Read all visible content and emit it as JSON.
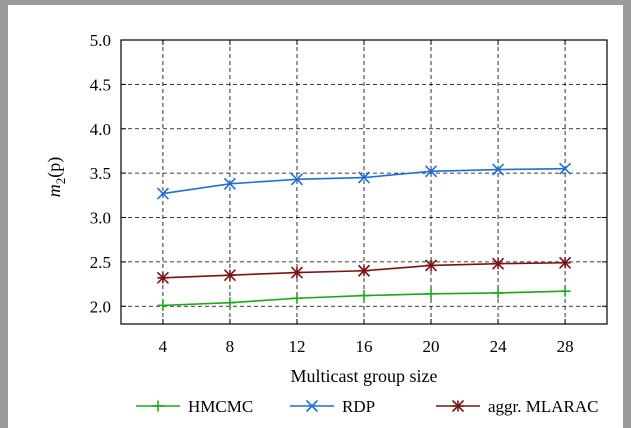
{
  "chart_data": {
    "type": "line",
    "x": [
      4,
      8,
      12,
      16,
      20,
      24,
      28
    ],
    "xlim": [
      1.5,
      30.5
    ],
    "ylim": [
      1.8,
      5.0
    ],
    "yticks": [
      2.0,
      2.5,
      3.0,
      3.5,
      4.0,
      4.5,
      5.0
    ],
    "ytick_labels": [
      "2.0",
      "2.5",
      "3.0",
      "3.5",
      "4.0",
      "4.5",
      "5.0"
    ],
    "xtick_labels": [
      "4",
      "8",
      "12",
      "16",
      "20",
      "24",
      "28"
    ],
    "xlabel": "Multicast group size",
    "ylabel_main": "m",
    "ylabel_sub": "2",
    "ylabel_tail": "(p)",
    "grid": true,
    "legend_position": "bottom",
    "series": [
      {
        "name": "HMCMC",
        "color": "#1aa81a",
        "marker": "plus",
        "values": [
          2.01,
          2.04,
          2.09,
          2.12,
          2.14,
          2.15,
          2.17
        ]
      },
      {
        "name": "RDP",
        "color": "#1f6fd6",
        "marker": "x",
        "values": [
          3.27,
          3.38,
          3.43,
          3.45,
          3.52,
          3.54,
          3.55
        ]
      },
      {
        "name": "aggr. MLARAC",
        "color": "#7a1414",
        "marker": "star",
        "values": [
          2.32,
          2.35,
          2.38,
          2.4,
          2.46,
          2.48,
          2.49
        ]
      }
    ]
  }
}
